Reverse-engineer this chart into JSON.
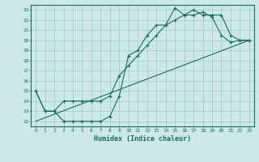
{
  "xlabel": "Humidex (Indice chaleur)",
  "bg_color": "#cde8e8",
  "grid_color": "#aacccc",
  "line_color": "#1a6b5a",
  "xlim": [
    -0.5,
    23.5
  ],
  "ylim": [
    11.5,
    23.5
  ],
  "xticks": [
    0,
    1,
    2,
    3,
    4,
    5,
    6,
    7,
    8,
    9,
    10,
    11,
    12,
    13,
    14,
    15,
    16,
    17,
    18,
    19,
    20,
    21,
    22,
    23
  ],
  "yticks": [
    12,
    13,
    14,
    15,
    16,
    17,
    18,
    19,
    20,
    21,
    22,
    23
  ],
  "line1_x": [
    0,
    1,
    2,
    3,
    4,
    5,
    6,
    7,
    8,
    9,
    10,
    11,
    12,
    13,
    14,
    15,
    16,
    17,
    18,
    19,
    20,
    21,
    22,
    23
  ],
  "line1_y": [
    15,
    13,
    13,
    12,
    12,
    12,
    12,
    12,
    12.5,
    14.5,
    18.5,
    19.0,
    20.5,
    21.5,
    21.5,
    23.2,
    22.5,
    22.5,
    22.8,
    22.3,
    20.5,
    19.8,
    20.0,
    20.0
  ],
  "line2_x": [
    0,
    1,
    2,
    3,
    4,
    5,
    6,
    7,
    8,
    9,
    10,
    11,
    12,
    13,
    14,
    15,
    16,
    17,
    18,
    19,
    20,
    21,
    22,
    23
  ],
  "line2_y": [
    15,
    13,
    13,
    14,
    14,
    14,
    14,
    14,
    14.5,
    16.5,
    17.5,
    18.5,
    19.5,
    20.5,
    21.5,
    22.0,
    22.5,
    23.0,
    22.5,
    22.5,
    22.5,
    20.5,
    20.0,
    20.0
  ],
  "line3_x": [
    0,
    23
  ],
  "line3_y": [
    12,
    20
  ]
}
